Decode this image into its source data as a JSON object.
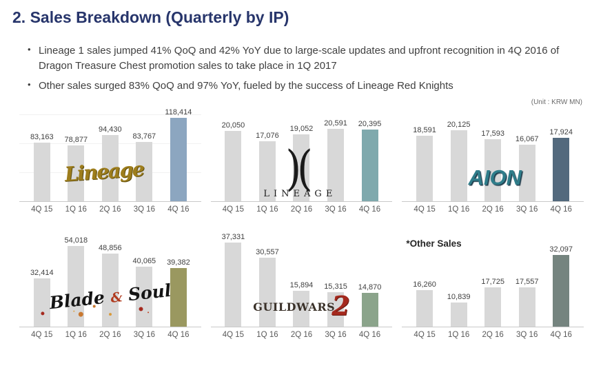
{
  "slide": {
    "title": "2. Sales Breakdown (Quarterly by IP)",
    "bullets": [
      "Lineage 1 sales jumped 41% QoQ and 42% YoY due to large-scale updates and upfront recognition in 4Q 2016 of Dragon Treasure Chest promotion sales to take place in 1Q 2017",
      "Other sales surged 83% QoQ and 97% YoY, fueled by the success of Lineage Red Knights"
    ],
    "unit_label": "(Unit : KRW MN)"
  },
  "colors": {
    "title_navy": "#27356B",
    "body_text": "#3F3F3F",
    "bar_default": "#D8D8D8",
    "axis_line": "#C9C9C9"
  },
  "chart_data": [
    {
      "type": "bar",
      "name": "Lineage",
      "logo_text": "Lineage",
      "categories": [
        "4Q 15",
        "1Q 16",
        "2Q 16",
        "3Q 16",
        "4Q 16"
      ],
      "values": [
        83163,
        78877,
        94430,
        83767,
        118414
      ],
      "highlight_index": 4,
      "highlight_color": "#8CA6C0"
    },
    {
      "type": "bar",
      "name": "Lineage II",
      "logo_text": "LINEAGE",
      "logo_mark": ")(",
      "categories": [
        "4Q 15",
        "1Q 16",
        "2Q 16",
        "3Q 16",
        "4Q 16"
      ],
      "values": [
        20050,
        17076,
        19052,
        20591,
        20395
      ],
      "highlight_index": 4,
      "highlight_color": "#7FA9AD"
    },
    {
      "type": "bar",
      "name": "AION",
      "logo_text": "AION",
      "categories": [
        "4Q 15",
        "1Q 16",
        "2Q 16",
        "3Q 16",
        "4Q 16"
      ],
      "values": [
        18591,
        20125,
        17593,
        16067,
        17924
      ],
      "highlight_index": 4,
      "highlight_color": "#53697D"
    },
    {
      "type": "bar",
      "name": "Blade & Soul",
      "logo_text_left": "Blade",
      "logo_amp": "&",
      "logo_text_right": "Soul",
      "categories": [
        "4Q 15",
        "1Q 16",
        "2Q 16",
        "3Q 16",
        "4Q 16"
      ],
      "values": [
        32414,
        54018,
        48856,
        40065,
        39382
      ],
      "highlight_index": 4,
      "highlight_color": "#9A9860"
    },
    {
      "type": "bar",
      "name": "Guild Wars 2",
      "logo_text": "GUILDWARS",
      "logo_mark": "2",
      "categories": [
        "4Q 15",
        "1Q 16",
        "2Q 16",
        "3Q 16",
        "4Q 16"
      ],
      "values": [
        37331,
        30557,
        15894,
        15315,
        14870
      ],
      "highlight_index": 4,
      "highlight_color": "#8BA48B"
    },
    {
      "type": "bar",
      "name": "Other Sales",
      "title_label": "*Other Sales",
      "categories": [
        "4Q 15",
        "1Q 16",
        "2Q 16",
        "3Q 16",
        "4Q 16"
      ],
      "values": [
        16260,
        10839,
        17725,
        17557,
        32097
      ],
      "highlight_index": 4,
      "highlight_color": "#75847F"
    }
  ]
}
